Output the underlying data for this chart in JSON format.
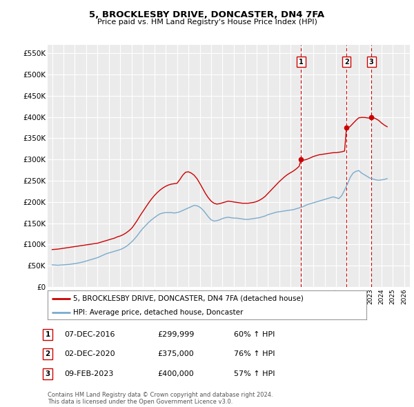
{
  "title": "5, BROCKLESBY DRIVE, DONCASTER, DN4 7FA",
  "subtitle": "Price paid vs. HM Land Registry's House Price Index (HPI)",
  "ylabel_ticks": [
    "£0",
    "£50K",
    "£100K",
    "£150K",
    "£200K",
    "£250K",
    "£300K",
    "£350K",
    "£400K",
    "£450K",
    "£500K",
    "£550K"
  ],
  "ytick_values": [
    0,
    50000,
    100000,
    150000,
    200000,
    250000,
    300000,
    350000,
    400000,
    450000,
    500000,
    550000
  ],
  "ylim": [
    0,
    570000
  ],
  "xlim_start": 1994.6,
  "xlim_end": 2026.5,
  "background_color": "#ffffff",
  "plot_bg_color": "#ebebeb",
  "grid_color": "#ffffff",
  "transaction_color": "#cc0000",
  "hpi_color": "#7aaacc",
  "vline_color": "#cc0000",
  "label1": "5, BROCKLESBY DRIVE, DONCASTER, DN4 7FA (detached house)",
  "label2": "HPI: Average price, detached house, Doncaster",
  "transactions": [
    {
      "label": "1",
      "date_num": 2016.92,
      "price": 299999
    },
    {
      "label": "2",
      "date_num": 2020.92,
      "price": 375000
    },
    {
      "label": "3",
      "date_num": 2023.11,
      "price": 400000
    }
  ],
  "table_rows": [
    {
      "num": "1",
      "date": "07-DEC-2016",
      "price": "£299,999",
      "change": "60% ↑ HPI"
    },
    {
      "num": "2",
      "date": "02-DEC-2020",
      "price": "£375,000",
      "change": "76% ↑ HPI"
    },
    {
      "num": "3",
      "date": "09-FEB-2023",
      "price": "£400,000",
      "change": "57% ↑ HPI"
    }
  ],
  "footer": "Contains HM Land Registry data © Crown copyright and database right 2024.\nThis data is licensed under the Open Government Licence v3.0.",
  "hpi_data_years": [
    1995.0,
    1995.25,
    1995.5,
    1995.75,
    1996.0,
    1996.25,
    1996.5,
    1996.75,
    1997.0,
    1997.25,
    1997.5,
    1997.75,
    1998.0,
    1998.25,
    1998.5,
    1998.75,
    1999.0,
    1999.25,
    1999.5,
    1999.75,
    2000.0,
    2000.25,
    2000.5,
    2000.75,
    2001.0,
    2001.25,
    2001.5,
    2001.75,
    2002.0,
    2002.25,
    2002.5,
    2002.75,
    2003.0,
    2003.25,
    2003.5,
    2003.75,
    2004.0,
    2004.25,
    2004.5,
    2004.75,
    2005.0,
    2005.25,
    2005.5,
    2005.75,
    2006.0,
    2006.25,
    2006.5,
    2006.75,
    2007.0,
    2007.25,
    2007.5,
    2007.75,
    2008.0,
    2008.25,
    2008.5,
    2008.75,
    2009.0,
    2009.25,
    2009.5,
    2009.75,
    2010.0,
    2010.25,
    2010.5,
    2010.75,
    2011.0,
    2011.25,
    2011.5,
    2011.75,
    2012.0,
    2012.25,
    2012.5,
    2012.75,
    2013.0,
    2013.25,
    2013.5,
    2013.75,
    2014.0,
    2014.25,
    2014.5,
    2014.75,
    2015.0,
    2015.25,
    2015.5,
    2015.75,
    2016.0,
    2016.25,
    2016.5,
    2016.75,
    2017.0,
    2017.25,
    2017.5,
    2017.75,
    2018.0,
    2018.25,
    2018.5,
    2018.75,
    2019.0,
    2019.25,
    2019.5,
    2019.75,
    2020.0,
    2020.25,
    2020.5,
    2020.75,
    2021.0,
    2021.25,
    2021.5,
    2021.75,
    2022.0,
    2022.25,
    2022.5,
    2022.75,
    2023.0,
    2023.25,
    2023.5,
    2023.75,
    2024.0,
    2024.25,
    2024.5
  ],
  "hpi_data_values": [
    52000,
    51500,
    51000,
    51500,
    52000,
    52500,
    53000,
    54000,
    55000,
    56000,
    57500,
    59000,
    61000,
    63000,
    65000,
    67000,
    69000,
    72000,
    75000,
    78000,
    80000,
    82000,
    84000,
    86000,
    88000,
    91000,
    95000,
    100000,
    106000,
    113000,
    121000,
    130000,
    138000,
    145000,
    152000,
    158000,
    163000,
    168000,
    172000,
    174000,
    175000,
    175000,
    175000,
    174000,
    175000,
    177000,
    180000,
    183000,
    186000,
    189000,
    192000,
    191000,
    188000,
    182000,
    174000,
    165000,
    158000,
    155000,
    156000,
    158000,
    161000,
    163000,
    164000,
    163000,
    162000,
    162000,
    161000,
    160000,
    159000,
    159000,
    160000,
    161000,
    162000,
    163000,
    165000,
    167000,
    170000,
    172000,
    174000,
    176000,
    177000,
    178000,
    179000,
    180000,
    181000,
    182000,
    184000,
    186000,
    188000,
    191000,
    194000,
    196000,
    198000,
    200000,
    202000,
    204000,
    206000,
    208000,
    210000,
    212000,
    210000,
    208000,
    215000,
    228000,
    242000,
    258000,
    268000,
    272000,
    274000,
    268000,
    264000,
    260000,
    256000,
    254000,
    252000,
    251000,
    252000,
    253000,
    255000
  ],
  "prop_years": [
    1995.0,
    1995.25,
    1995.5,
    1995.75,
    1996.0,
    1996.25,
    1996.5,
    1996.75,
    1997.0,
    1997.25,
    1997.5,
    1997.75,
    1998.0,
    1998.25,
    1998.5,
    1998.75,
    1999.0,
    1999.25,
    1999.5,
    1999.75,
    2000.0,
    2000.25,
    2000.5,
    2000.75,
    2001.0,
    2001.25,
    2001.5,
    2001.75,
    2002.0,
    2002.25,
    2002.5,
    2002.75,
    2003.0,
    2003.25,
    2003.5,
    2003.75,
    2004.0,
    2004.25,
    2004.5,
    2004.75,
    2005.0,
    2005.25,
    2005.5,
    2005.75,
    2006.0,
    2006.25,
    2006.5,
    2006.75,
    2007.0,
    2007.25,
    2007.5,
    2007.75,
    2008.0,
    2008.25,
    2008.5,
    2008.75,
    2009.0,
    2009.25,
    2009.5,
    2009.75,
    2010.0,
    2010.25,
    2010.5,
    2010.75,
    2011.0,
    2011.25,
    2011.5,
    2011.75,
    2012.0,
    2012.25,
    2012.5,
    2012.75,
    2013.0,
    2013.25,
    2013.5,
    2013.75,
    2014.0,
    2014.25,
    2014.5,
    2014.75,
    2015.0,
    2015.25,
    2015.5,
    2015.75,
    2016.0,
    2016.25,
    2016.5,
    2016.75,
    2016.92,
    2017.0,
    2017.25,
    2017.5,
    2017.75,
    2018.0,
    2018.25,
    2018.5,
    2018.75,
    2019.0,
    2019.25,
    2019.5,
    2019.75,
    2020.0,
    2020.25,
    2020.5,
    2020.75,
    2020.92,
    2021.0,
    2021.25,
    2021.5,
    2021.75,
    2022.0,
    2022.25,
    2022.5,
    2022.75,
    2023.0,
    2023.11,
    2023.25,
    2023.5,
    2023.75,
    2024.0,
    2024.25,
    2024.5
  ],
  "prop_values": [
    88000,
    88500,
    89000,
    90000,
    91000,
    92000,
    93000,
    94000,
    95000,
    96000,
    97000,
    98000,
    99000,
    100000,
    101000,
    102000,
    103000,
    105000,
    107000,
    109000,
    111000,
    113000,
    115000,
    118000,
    120000,
    123000,
    127000,
    132000,
    138000,
    147000,
    157000,
    168000,
    178000,
    188000,
    198000,
    207000,
    215000,
    222000,
    228000,
    233000,
    237000,
    240000,
    242000,
    243000,
    244000,
    253000,
    263000,
    270000,
    271000,
    268000,
    263000,
    255000,
    244000,
    232000,
    220000,
    210000,
    202000,
    197000,
    195000,
    196000,
    198000,
    200000,
    202000,
    201000,
    200000,
    199000,
    198000,
    197000,
    197000,
    197000,
    198000,
    199000,
    201000,
    204000,
    208000,
    213000,
    220000,
    227000,
    234000,
    241000,
    248000,
    254000,
    260000,
    265000,
    269000,
    273000,
    278000,
    284000,
    299999,
    298000,
    299000,
    301000,
    304000,
    307000,
    309000,
    311000,
    312000,
    313000,
    314000,
    315000,
    316000,
    316000,
    317000,
    318000,
    320000,
    375000,
    373000,
    378000,
    385000,
    392000,
    398000,
    399000,
    399000,
    398000,
    397000,
    400000,
    399000,
    396000,
    392000,
    386000,
    381000,
    377000
  ]
}
